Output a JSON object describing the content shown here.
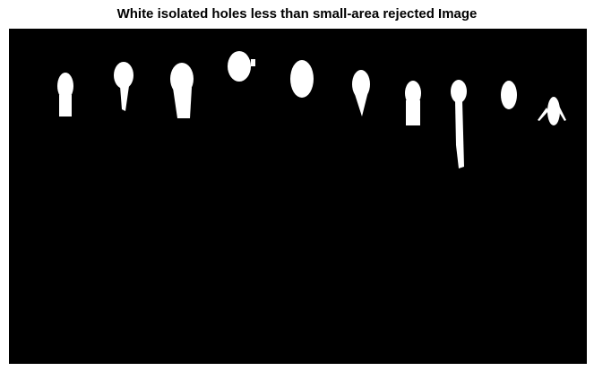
{
  "title": "White isolated holes less than small-area rejected Image"
}
